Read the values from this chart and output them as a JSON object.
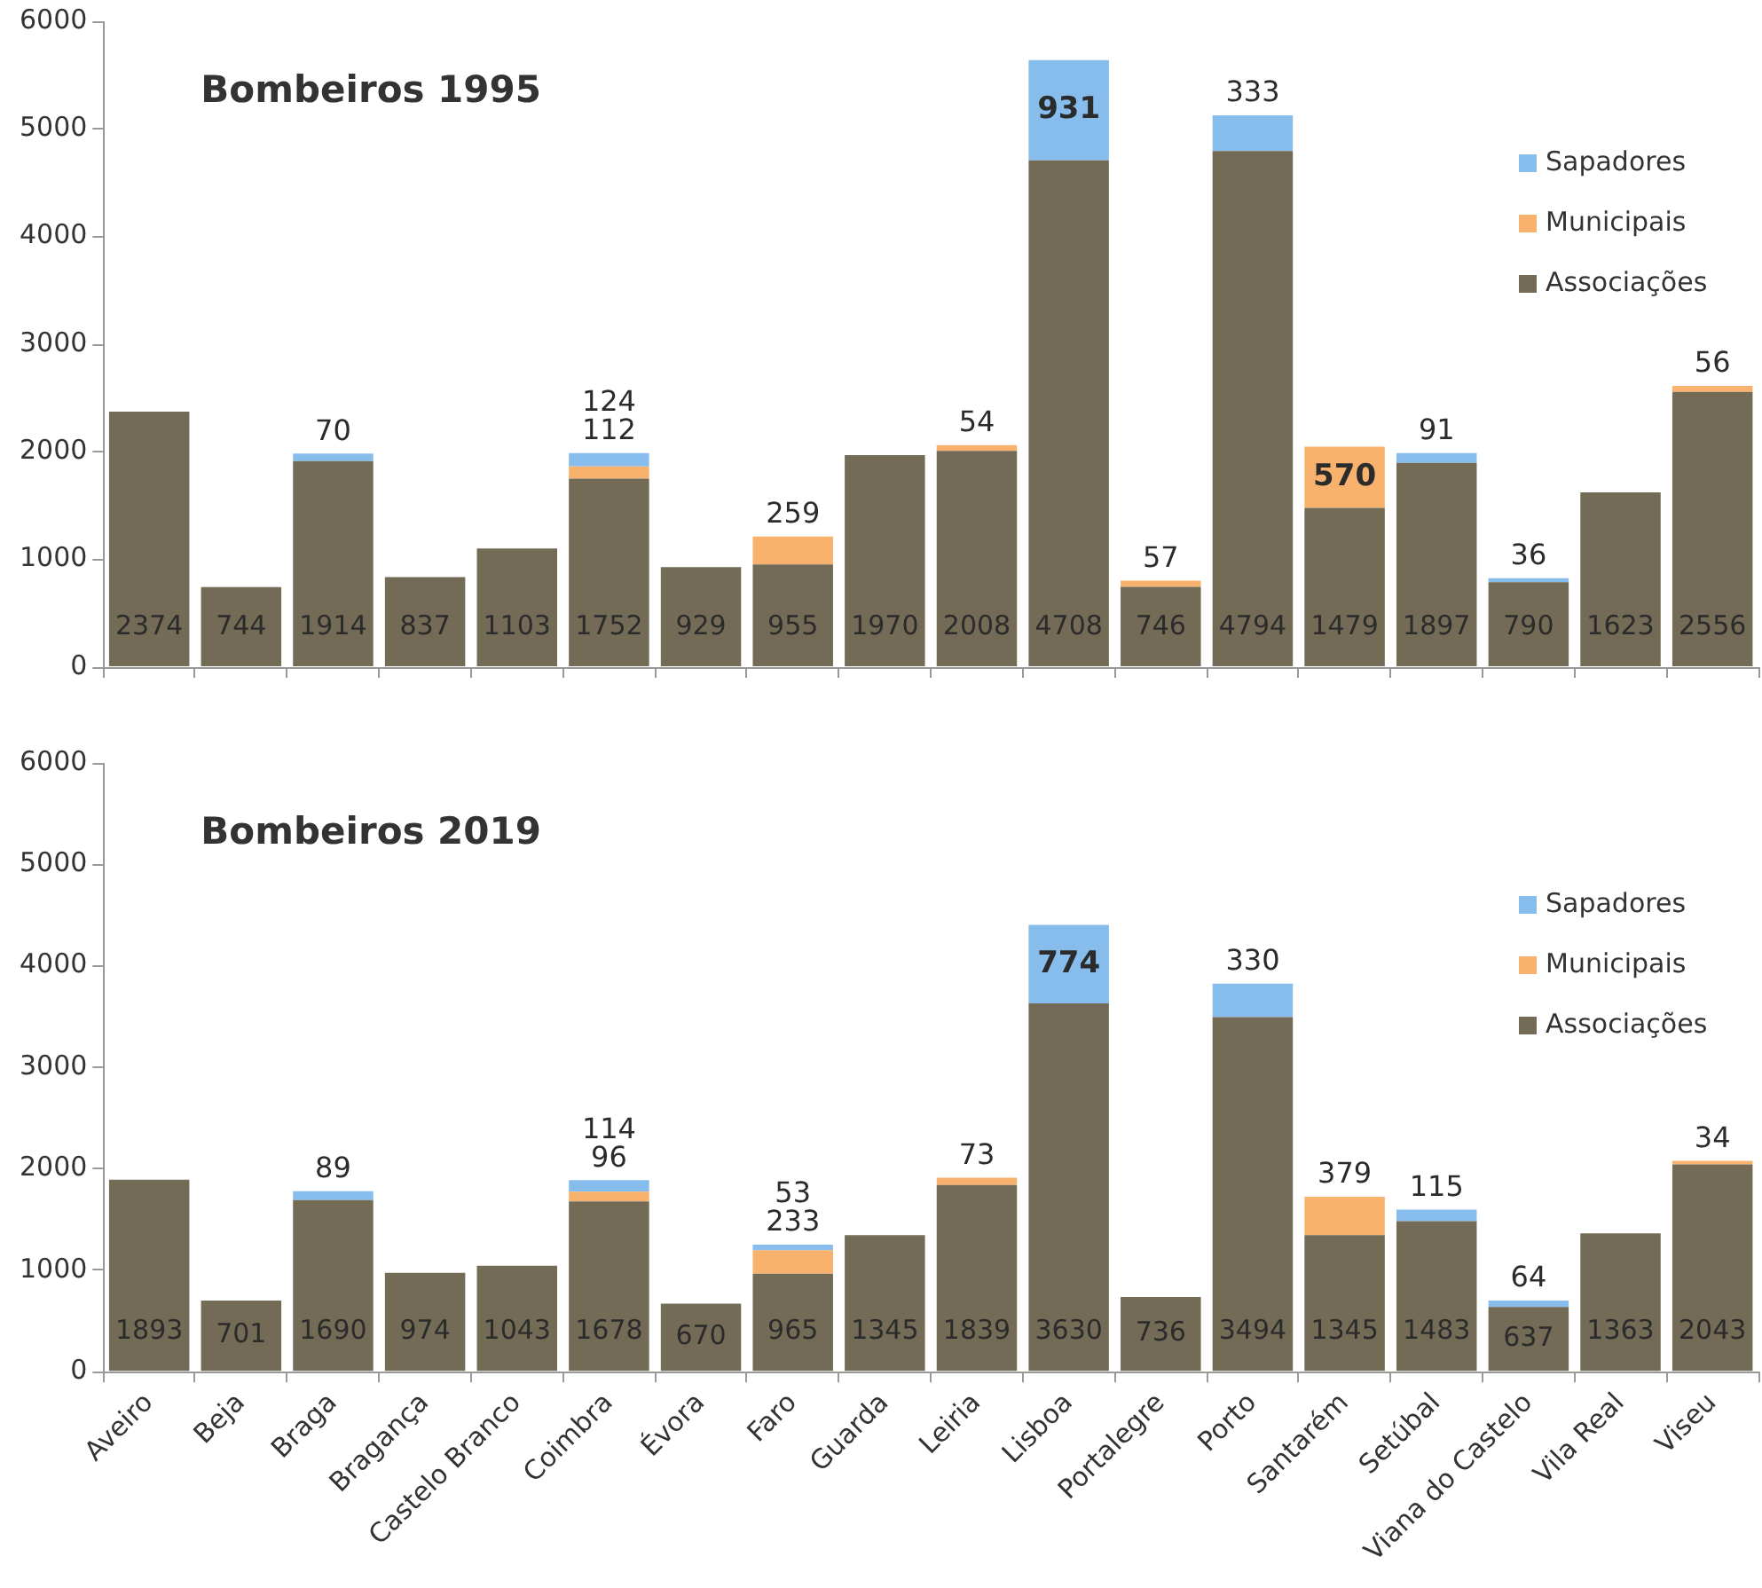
{
  "chart_data": [
    {
      "type": "bar",
      "title": "Bombeiros 1995",
      "stacked": true,
      "legend": "top right",
      "grid": false,
      "data_labels": true,
      "tick_labels": "y",
      "categories": [
        null,
        null,
        null,
        null,
        null,
        null,
        null,
        null,
        null,
        null,
        null,
        null,
        null,
        null,
        null,
        null,
        null,
        null
      ],
      "ylim": [
        0,
        6000
      ],
      "yticks": [
        0,
        1000,
        2000,
        3000,
        4000,
        5000,
        6000
      ],
      "series": [
        {
          "name": "Associações",
          "color": "#736b55",
          "values": [
            2374,
            744,
            1914,
            837,
            1103,
            1752,
            929,
            955,
            1970,
            2008,
            4708,
            746,
            4794,
            1479,
            1897,
            790,
            1623,
            2556
          ]
        },
        {
          "name": "Municipais",
          "color": "#f9b26e",
          "values": [
            null,
            null,
            null,
            null,
            null,
            112,
            null,
            259,
            null,
            54,
            null,
            57,
            null,
            570,
            null,
            null,
            null,
            56
          ]
        },
        {
          "name": "Sapadores",
          "color": "#86bdec",
          "values": [
            null,
            null,
            70,
            null,
            null,
            124,
            null,
            null,
            null,
            null,
            931,
            null,
            333,
            null,
            91,
            36,
            null,
            null
          ]
        }
      ]
    },
    {
      "type": "bar",
      "title": "Bombeiros 2019",
      "stacked": true,
      "legend": "top right",
      "grid": false,
      "data_labels": true,
      "categories": [
        "Aveiro",
        "Beja",
        "Braga",
        "Bragança",
        "Castelo Branco",
        "Coimbra",
        "Évora",
        "Faro",
        "Guarda",
        "Leiria",
        "Lisboa",
        "Portalegre",
        "Porto",
        "Santarém",
        "Setúbal",
        "Viana do Castelo",
        "Vila Real",
        "Viseu"
      ],
      "ylim": [
        0,
        6000
      ],
      "yticks": [
        0,
        1000,
        2000,
        3000,
        4000,
        5000,
        6000
      ],
      "series": [
        {
          "name": "Associações",
          "color": "#736b55",
          "values": [
            1893,
            701,
            1690,
            974,
            1043,
            1678,
            670,
            965,
            1345,
            1839,
            3630,
            736,
            3494,
            1345,
            1483,
            637,
            1363,
            2043
          ]
        },
        {
          "name": "Municipais",
          "color": "#f9b26e",
          "values": [
            null,
            null,
            null,
            null,
            null,
            96,
            null,
            233,
            null,
            73,
            null,
            null,
            null,
            379,
            null,
            null,
            null,
            34
          ]
        },
        {
          "name": "Sapadores",
          "color": "#86bdec",
          "values": [
            null,
            null,
            89,
            null,
            null,
            114,
            null,
            53,
            null,
            null,
            774,
            null,
            330,
            null,
            115,
            64,
            null,
            null
          ]
        }
      ]
    }
  ]
}
